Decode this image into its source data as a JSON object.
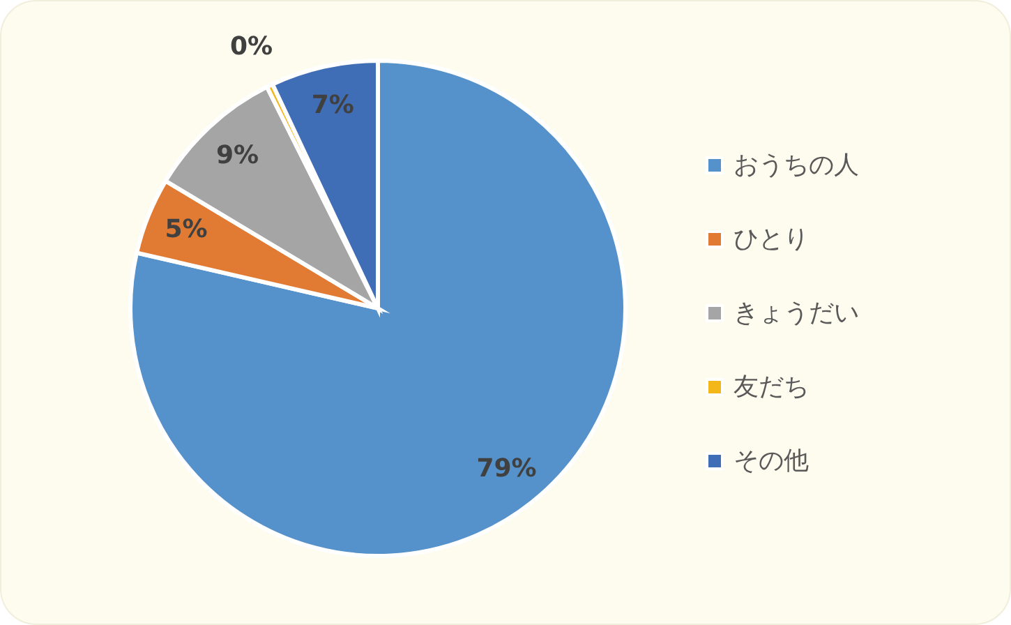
{
  "chart_data": {
    "type": "pie",
    "categories": [
      "おうちの人",
      "ひとり",
      "きょうだい",
      "友だち",
      "その他"
    ],
    "values": [
      78.6,
      5,
      9,
      0.4,
      7
    ],
    "colors": [
      "#5592cb",
      "#e17b33",
      "#a5a5a5",
      "#f4b71a",
      "#3f6db6"
    ],
    "value_labels": [
      "79%",
      "5%",
      "9%",
      "0%",
      "7%"
    ],
    "legend": "right"
  }
}
